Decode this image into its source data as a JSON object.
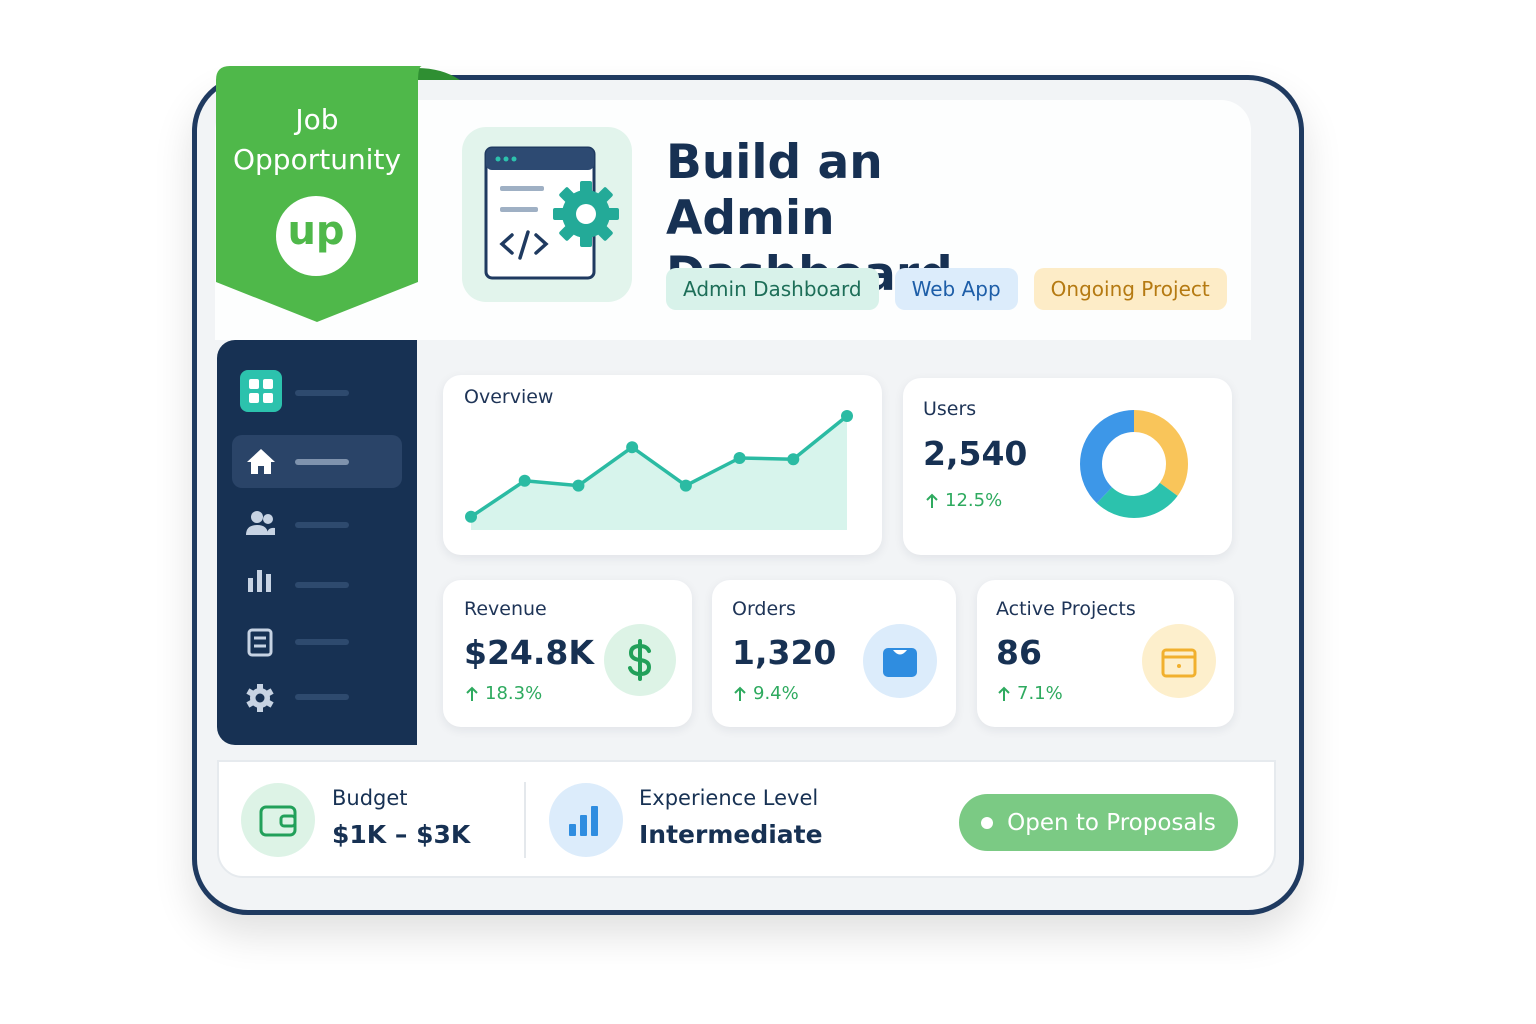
{
  "badge": {
    "title": "Job Opportunity",
    "logo": "up"
  },
  "header": {
    "title": "Build an Admin Dashboard",
    "tags": [
      "Admin Dashboard",
      "Web App",
      "Ongoing Project"
    ]
  },
  "overview": {
    "title": "Overview",
    "type": "line",
    "values": [
      11,
      41,
      37,
      69,
      37,
      60,
      59,
      95
    ],
    "ylim": [
      0,
      100
    ],
    "color": "#2bbba3"
  },
  "users": {
    "title": "Users",
    "value": "2,540",
    "change": "12.5%",
    "donut": {
      "type": "pie",
      "values": [
        35,
        27,
        38
      ],
      "colors": [
        "#f9c55a",
        "#2cc2ad",
        "#3d97e8"
      ]
    }
  },
  "stats": [
    {
      "title": "Revenue",
      "value": "$24.8K",
      "change": "18.3%"
    },
    {
      "title": "Orders",
      "value": "1,320",
      "change": "9.4%"
    },
    {
      "title": "Active Projects",
      "value": "86",
      "change": "7.1%"
    }
  ],
  "footer": {
    "budget_label": "Budget",
    "budget": "$1K – $3K",
    "experience_label": "Experience Level",
    "experience": "Intermediate",
    "status": "Open to Proposals"
  }
}
